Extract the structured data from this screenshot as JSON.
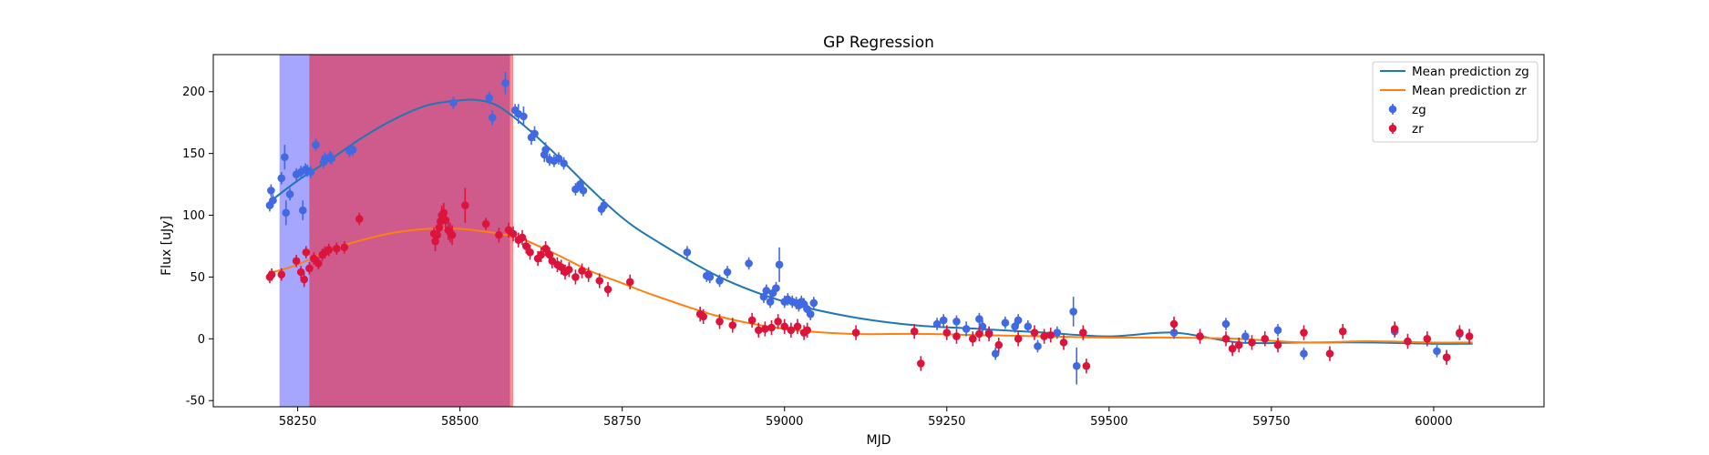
{
  "chart_data": {
    "type": "scatter",
    "title": "GP Regression",
    "xlabel": "MJD",
    "ylabel": "Flux [uJy]",
    "xlim": [
      58120,
      60170
    ],
    "ylim": [
      -55,
      230
    ],
    "xticks": [
      58250,
      58500,
      58750,
      59000,
      59250,
      59500,
      59750,
      60000
    ],
    "yticks": [
      -50,
      0,
      50,
      100,
      150,
      200
    ],
    "legend_position": "top-right",
    "spans": [
      {
        "name": "zg-window",
        "x0": 58222,
        "x1": 58577,
        "color": "#0000ff",
        "opacity": 0.35
      },
      {
        "name": "zr-window",
        "x0": 58268,
        "x1": 58582,
        "color": "#ff0000",
        "opacity": 0.45
      }
    ],
    "lines": [
      {
        "name": "Mean prediction zg",
        "color": "#1f77b4",
        "x": [
          58205,
          58250,
          58300,
          58350,
          58400,
          58450,
          58500,
          58530,
          58560,
          58600,
          58650,
          58700,
          58750,
          58800,
          58900,
          59000,
          59100,
          59200,
          59300,
          59400,
          59500,
          59600,
          59700,
          59800,
          59900,
          60000,
          60060
        ],
        "y": [
          110,
          128,
          145,
          163,
          178,
          189,
          193,
          193,
          188,
          172,
          148,
          122,
          98,
          80,
          50,
          30,
          18,
          11,
          8,
          5,
          2,
          5,
          -3,
          -3,
          -3,
          -4,
          -4
        ]
      },
      {
        "name": "Mean prediction zr",
        "color": "#ff7f0e",
        "x": [
          58205,
          58250,
          58300,
          58350,
          58400,
          58450,
          58500,
          58550,
          58580,
          58600,
          58650,
          58700,
          58750,
          58800,
          58900,
          59000,
          59100,
          59200,
          59300,
          59400,
          59500,
          59600,
          59700,
          59800,
          59900,
          60000,
          60060
        ],
        "y": [
          53,
          60,
          72,
          80,
          86,
          89,
          89,
          86,
          83,
          80,
          68,
          55,
          45,
          35,
          18,
          8,
          4,
          4,
          3,
          2,
          1,
          1,
          0,
          -3,
          -2,
          -3,
          -3
        ]
      }
    ],
    "series": [
      {
        "name": "zg",
        "color": "#4169e1",
        "x": [
          58207,
          58209,
          58212,
          58225,
          58230,
          58232,
          58238,
          58248,
          58255,
          58258,
          58262,
          58265,
          58270,
          58278,
          58290,
          58292,
          58300,
          58302,
          58330,
          58335,
          58490,
          58545,
          58550,
          58570,
          58585,
          58590,
          58598,
          58610,
          58615,
          58630,
          58632,
          58638,
          58645,
          58652,
          58660,
          58678,
          58685,
          58690,
          58718,
          58722,
          58850,
          58880,
          58885,
          58900,
          58912,
          58945,
          58968,
          58972,
          58978,
          58982,
          58987,
          58992,
          59000,
          59005,
          59012,
          59018,
          59022,
          59026,
          59030,
          59035,
          59040,
          59045,
          59235,
          59245,
          59265,
          59280,
          59300,
          59305,
          59315,
          59325,
          59340,
          59355,
          59360,
          59375,
          59390,
          59420,
          59445,
          59450,
          59600,
          59680,
          59710,
          59760,
          59800,
          59940,
          60005,
          60020,
          60040
        ],
        "y": [
          108,
          120,
          112,
          130,
          147,
          102,
          117,
          133,
          135,
          104,
          137,
          136,
          135,
          157,
          143,
          146,
          147,
          146,
          152,
          153,
          191,
          195,
          179,
          207,
          185,
          182,
          180,
          163,
          166,
          149,
          153,
          145,
          144,
          146,
          142,
          121,
          125,
          120,
          105,
          108,
          70,
          51,
          50,
          47,
          54,
          61,
          34,
          39,
          30,
          37,
          41,
          60,
          30,
          32,
          30,
          29,
          27,
          30,
          28,
          24,
          20,
          29,
          12,
          15,
          14,
          8,
          16,
          10,
          5,
          -12,
          13,
          10,
          15,
          10,
          -6,
          5,
          22,
          -22,
          5,
          12,
          2,
          7,
          -12,
          6,
          -10,
          -15,
          4
        ],
        "err": [
          5,
          5,
          5,
          5,
          10,
          10,
          5,
          5,
          5,
          8,
          5,
          5,
          5,
          5,
          5,
          5,
          5,
          5,
          5,
          5,
          5,
          5,
          6,
          9,
          5,
          8,
          8,
          6,
          6,
          6,
          6,
          5,
          5,
          5,
          5,
          5,
          5,
          5,
          5,
          5,
          5,
          5,
          5,
          5,
          5,
          5,
          5,
          5,
          5,
          5,
          5,
          14,
          5,
          5,
          5,
          5,
          5,
          5,
          5,
          5,
          5,
          5,
          5,
          5,
          5,
          6,
          5,
          5,
          5,
          5,
          5,
          5,
          5,
          5,
          5,
          5,
          12,
          15,
          5,
          5,
          5,
          5,
          5,
          5,
          5,
          5,
          5
        ]
      },
      {
        "name": "zr",
        "color": "#dc143c",
        "x": [
          58207,
          58210,
          58225,
          58248,
          58255,
          58260,
          58263,
          58268,
          58275,
          58282,
          58288,
          58292,
          58298,
          58310,
          58322,
          58345,
          58460,
          58462,
          58465,
          58468,
          58470,
          58472,
          58475,
          58478,
          58482,
          58485,
          58488,
          58508,
          58540,
          58560,
          58575,
          58582,
          58590,
          58596,
          58602,
          58608,
          58620,
          58625,
          58632,
          58638,
          58642,
          58650,
          58656,
          58662,
          58668,
          58678,
          58688,
          58698,
          58715,
          58728,
          58762,
          58870,
          58875,
          58900,
          58920,
          58950,
          58960,
          58970,
          58980,
          58990,
          59000,
          59010,
          59020,
          59030,
          59035,
          59110,
          59200,
          59210,
          59250,
          59265,
          59290,
          59300,
          59315,
          59330,
          59360,
          59385,
          59400,
          59410,
          59430,
          59460,
          59465,
          59600,
          59640,
          59680,
          59690,
          59700,
          59720,
          59740,
          59760,
          59800,
          59840,
          59860,
          59940,
          59960,
          59990,
          60020,
          60040,
          60055
        ],
        "y": [
          50,
          52,
          52,
          63,
          54,
          48,
          70,
          57,
          65,
          61,
          68,
          70,
          72,
          73,
          74,
          97,
          85,
          79,
          84,
          90,
          95,
          100,
          102,
          96,
          88,
          86,
          84,
          108,
          93,
          84,
          88,
          85,
          80,
          82,
          75,
          70,
          65,
          68,
          73,
          68,
          63,
          60,
          58,
          54,
          56,
          50,
          55,
          52,
          47,
          40,
          46,
          20,
          18,
          14,
          11,
          15,
          7,
          8,
          9,
          14,
          10,
          7,
          10,
          5,
          7,
          5,
          6,
          -20,
          5,
          2,
          0,
          4,
          4,
          -5,
          0,
          5,
          2,
          3,
          -3,
          5,
          -22,
          12,
          2,
          0,
          -8,
          -5,
          -3,
          0,
          -5,
          5,
          -12,
          6,
          8,
          -2,
          0,
          -15,
          5,
          2
        ],
        "err": [
          5,
          5,
          5,
          5,
          5,
          6,
          5,
          5,
          5,
          5,
          5,
          5,
          5,
          5,
          5,
          5,
          5,
          8,
          8,
          8,
          8,
          8,
          8,
          8,
          8,
          8,
          8,
          14,
          5,
          6,
          6,
          6,
          6,
          6,
          6,
          6,
          6,
          6,
          6,
          6,
          6,
          6,
          6,
          6,
          6,
          6,
          6,
          6,
          6,
          6,
          6,
          6,
          6,
          6,
          6,
          6,
          6,
          6,
          6,
          6,
          6,
          6,
          6,
          6,
          6,
          6,
          6,
          6,
          6,
          6,
          6,
          6,
          6,
          6,
          6,
          6,
          6,
          6,
          6,
          6,
          6,
          6,
          6,
          6,
          6,
          6,
          6,
          6,
          6,
          6,
          6,
          6,
          6,
          6,
          6,
          6,
          6,
          6
        ]
      }
    ]
  }
}
